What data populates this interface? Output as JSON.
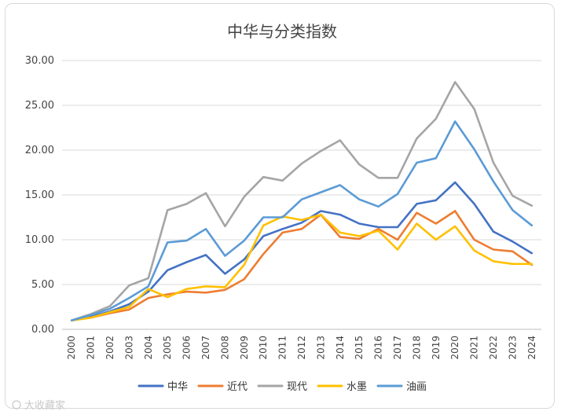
{
  "chart_data": {
    "type": "line",
    "title": "中华与分类指数",
    "xlabel": "",
    "ylabel": "",
    "ylim": [
      0,
      30
    ],
    "yticks": [
      "0.00",
      "5.00",
      "10.00",
      "15.00",
      "20.00",
      "25.00",
      "30.00"
    ],
    "categories": [
      "2000",
      "2001",
      "2002",
      "2003",
      "2004",
      "2005",
      "2006",
      "2007",
      "2008",
      "2009",
      "2010",
      "2011",
      "2012",
      "2013",
      "2014",
      "2015",
      "2016",
      "2017",
      "2018",
      "2019",
      "2020",
      "2021",
      "2022",
      "2023",
      "2024"
    ],
    "grid": true,
    "legend_position": "bottom",
    "series": [
      {
        "name": "中华",
        "color": "#4472c4",
        "values": [
          1.0,
          1.4,
          2.0,
          2.8,
          4.2,
          6.6,
          7.5,
          8.3,
          6.2,
          7.8,
          10.4,
          11.2,
          11.9,
          13.2,
          12.8,
          11.8,
          11.4,
          11.4,
          14.0,
          14.4,
          16.4,
          14.0,
          10.9,
          9.8,
          8.5
        ]
      },
      {
        "name": "近代",
        "color": "#ed7d31",
        "values": [
          1.0,
          1.3,
          1.8,
          2.2,
          3.5,
          3.9,
          4.2,
          4.1,
          4.4,
          5.6,
          8.4,
          10.8,
          11.2,
          12.8,
          10.3,
          10.1,
          11.2,
          10.0,
          13.0,
          11.8,
          13.2,
          10.0,
          8.9,
          8.7,
          7.2
        ]
      },
      {
        "name": "现代",
        "color": "#a5a5a5",
        "values": [
          1.0,
          1.7,
          2.6,
          4.9,
          5.7,
          13.3,
          14.0,
          15.2,
          11.5,
          14.8,
          17.0,
          16.6,
          18.5,
          19.9,
          21.1,
          18.4,
          16.9,
          16.9,
          21.3,
          23.5,
          27.6,
          24.6,
          18.6,
          14.9,
          13.8
        ]
      },
      {
        "name": "水墨",
        "color": "#ffc000",
        "values": [
          1.0,
          1.3,
          1.9,
          2.5,
          4.5,
          3.6,
          4.5,
          4.8,
          4.7,
          7.2,
          11.6,
          12.6,
          12.2,
          12.8,
          10.8,
          10.4,
          11.0,
          8.9,
          11.8,
          10.0,
          11.5,
          8.8,
          7.6,
          7.3,
          7.3
        ]
      },
      {
        "name": "油画",
        "color": "#5b9bd5",
        "values": [
          1.0,
          1.6,
          2.3,
          3.5,
          4.8,
          9.7,
          9.9,
          11.2,
          8.2,
          9.9,
          12.5,
          12.5,
          14.5,
          15.3,
          16.1,
          14.5,
          13.7,
          15.1,
          18.6,
          19.1,
          23.2,
          20.1,
          16.5,
          13.3,
          11.6
        ]
      }
    ]
  },
  "watermark": "大收藏家"
}
